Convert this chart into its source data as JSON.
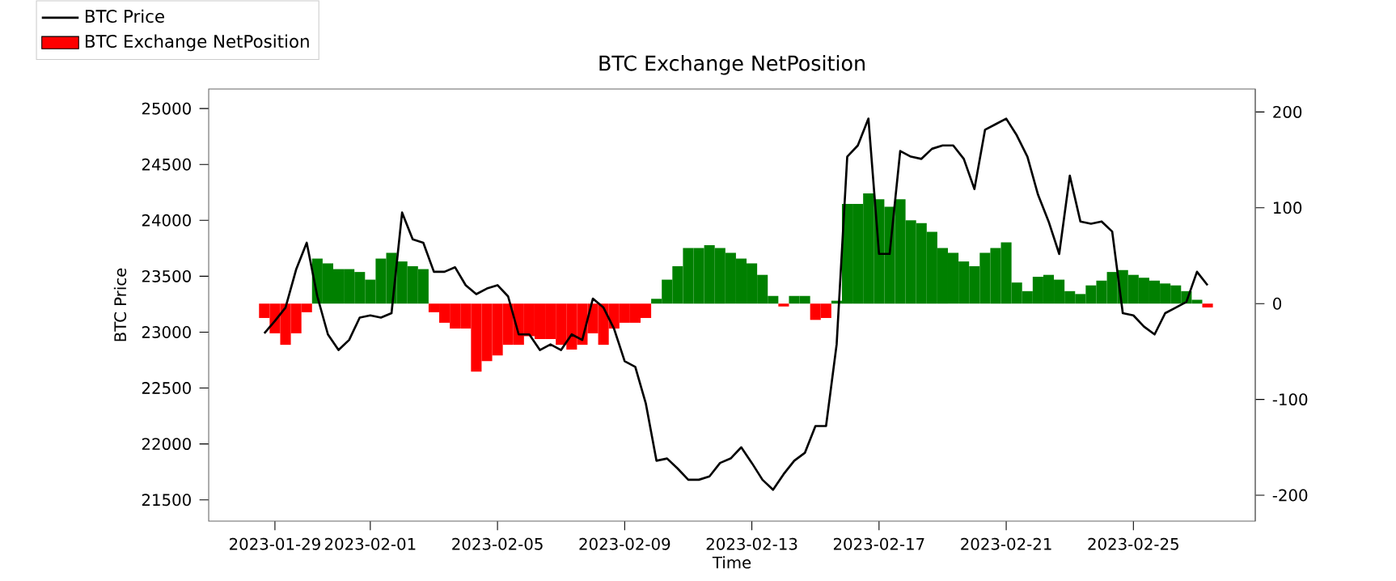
{
  "chart_data": {
    "type": "line",
    "title": "BTC Exchange NetPosition",
    "xlabel": "Time",
    "ylabel": "BTC Price",
    "x": [
      "2023-01-28T16:00",
      "2023-01-29T00:00",
      "2023-01-29T08:00",
      "2023-01-29T16:00",
      "2023-01-30T00:00",
      "2023-01-30T08:00",
      "2023-01-30T16:00",
      "2023-01-31T00:00",
      "2023-01-31T08:00",
      "2023-01-31T16:00",
      "2023-02-01T00:00",
      "2023-02-01T08:00",
      "2023-02-01T16:00",
      "2023-02-02T00:00",
      "2023-02-02T08:00",
      "2023-02-02T16:00",
      "2023-02-03T00:00",
      "2023-02-03T08:00",
      "2023-02-03T16:00",
      "2023-02-04T00:00",
      "2023-02-04T08:00",
      "2023-02-04T16:00",
      "2023-02-05T00:00",
      "2023-02-05T08:00",
      "2023-02-05T16:00",
      "2023-02-06T00:00",
      "2023-02-06T08:00",
      "2023-02-06T16:00",
      "2023-02-07T00:00",
      "2023-02-07T08:00",
      "2023-02-07T16:00",
      "2023-02-08T00:00",
      "2023-02-08T08:00",
      "2023-02-08T16:00",
      "2023-02-09T00:00",
      "2023-02-09T08:00",
      "2023-02-09T16:00",
      "2023-02-10T00:00",
      "2023-02-10T08:00",
      "2023-02-10T16:00",
      "2023-02-11T00:00",
      "2023-02-11T08:00",
      "2023-02-11T16:00",
      "2023-02-12T00:00",
      "2023-02-12T08:00",
      "2023-02-12T16:00",
      "2023-02-13T00:00",
      "2023-02-13T08:00",
      "2023-02-13T16:00",
      "2023-02-14T00:00",
      "2023-02-14T08:00",
      "2023-02-14T16:00",
      "2023-02-15T00:00",
      "2023-02-15T08:00",
      "2023-02-15T16:00",
      "2023-02-16T00:00",
      "2023-02-16T08:00",
      "2023-02-16T16:00",
      "2023-02-17T00:00",
      "2023-02-17T08:00",
      "2023-02-17T16:00",
      "2023-02-18T00:00",
      "2023-02-18T08:00",
      "2023-02-18T16:00",
      "2023-02-19T00:00",
      "2023-02-19T08:00",
      "2023-02-19T16:00",
      "2023-02-20T00:00",
      "2023-02-20T08:00",
      "2023-02-20T16:00",
      "2023-02-21T00:00",
      "2023-02-21T08:00",
      "2023-02-21T16:00",
      "2023-02-22T00:00",
      "2023-02-22T08:00",
      "2023-02-22T16:00",
      "2023-02-23T00:00",
      "2023-02-23T08:00",
      "2023-02-23T16:00",
      "2023-02-24T00:00",
      "2023-02-24T08:00",
      "2023-02-24T16:00",
      "2023-02-25T00:00",
      "2023-02-25T08:00",
      "2023-02-25T16:00",
      "2023-02-26T00:00",
      "2023-02-26T08:00",
      "2023-02-26T16:00",
      "2023-02-27T00:00",
      "2023-02-27T08:00"
    ],
    "series": [
      {
        "name": "BTC Exchange NetPosition",
        "type": "bar",
        "axis": "y2",
        "color": "#ff0000",
        "values": [
          -15,
          -31,
          -43,
          -31,
          -9,
          47,
          42,
          36,
          36,
          33,
          25,
          47,
          53,
          44,
          39,
          36,
          -9,
          -20,
          -26,
          -26,
          -71,
          -60,
          -54,
          -43,
          -43,
          -34,
          -37,
          -37,
          -43,
          -48,
          -43,
          -31,
          -43,
          -26,
          -20,
          -20,
          -15,
          5,
          25,
          39,
          58,
          58,
          61,
          58,
          53,
          47,
          42,
          30,
          8,
          -3,
          8,
          8,
          -17,
          -15,
          3,
          104,
          104,
          115,
          109,
          101,
          109,
          87,
          84,
          75,
          58,
          53,
          44,
          39,
          53,
          58,
          64,
          22,
          13,
          28,
          30,
          25,
          13,
          10,
          19,
          24,
          33,
          35,
          30,
          27,
          24,
          21,
          19,
          13,
          4,
          -4
        ],
        "colors": [
          "#ff0000",
          "#ff0000",
          "#ff0000",
          "#ff0000",
          "#ff0000",
          "#008000",
          "#008000",
          "#008000",
          "#008000",
          "#008000",
          "#008000",
          "#008000",
          "#008000",
          "#008000",
          "#008000",
          "#008000",
          "#ff0000",
          "#ff0000",
          "#ff0000",
          "#ff0000",
          "#ff0000",
          "#ff0000",
          "#ff0000",
          "#ff0000",
          "#ff0000",
          "#ff0000",
          "#ff0000",
          "#ff0000",
          "#ff0000",
          "#ff0000",
          "#ff0000",
          "#ff0000",
          "#ff0000",
          "#ff0000",
          "#ff0000",
          "#ff0000",
          "#ff0000",
          "#008000",
          "#008000",
          "#008000",
          "#008000",
          "#008000",
          "#008000",
          "#008000",
          "#008000",
          "#008000",
          "#008000",
          "#008000",
          "#008000",
          "#ff0000",
          "#008000",
          "#008000",
          "#ff0000",
          "#ff0000",
          "#008000",
          "#008000",
          "#008000",
          "#008000",
          "#008000",
          "#008000",
          "#008000",
          "#008000",
          "#008000",
          "#008000",
          "#008000",
          "#008000",
          "#008000",
          "#008000",
          "#008000",
          "#008000",
          "#008000",
          "#008000",
          "#008000",
          "#008000",
          "#008000",
          "#008000",
          "#008000",
          "#008000",
          "#008000",
          "#008000",
          "#008000",
          "#008000",
          "#008000",
          "#008000",
          "#008000",
          "#008000",
          "#008000",
          "#008000",
          "#008000",
          "#ff0000"
        ]
      },
      {
        "name": "BTC Price",
        "color": "#000000",
        "values": [
          22990,
          23100,
          23220,
          23560,
          23800,
          23320,
          22980,
          22840,
          22930,
          23130,
          23150,
          23130,
          23170,
          24070,
          23830,
          23800,
          23540,
          23540,
          23580,
          23420,
          23340,
          23390,
          23420,
          23320,
          22980,
          22980,
          22840,
          22890,
          22840,
          22980,
          22930,
          23300,
          23220,
          23030,
          22740,
          22690,
          22360,
          21850,
          21870,
          21780,
          21680,
          21680,
          21710,
          21830,
          21870,
          21970,
          21830,
          21680,
          21590,
          21730,
          21850,
          21920,
          22160,
          22160,
          22890,
          24570,
          24670,
          24910,
          23700,
          23700,
          24620,
          24570,
          24550,
          24640,
          24670,
          24670,
          24550,
          24280,
          24810,
          24860,
          24910,
          24760,
          24570,
          24230,
          23990,
          23700,
          24400,
          23990,
          23970,
          23990,
          23900,
          23170,
          23150,
          23050,
          22980,
          23170,
          23220,
          23270,
          23540,
          23420
        ]
      }
    ],
    "xlim": [
      "2023-01-26T22:00",
      "2023-02-28T20:00"
    ],
    "xticks": [
      "2023-01-29",
      "2023-02-01",
      "2023-02-05",
      "2023-02-09",
      "2023-02-13",
      "2023-02-17",
      "2023-02-21",
      "2023-02-25"
    ],
    "ylim": [
      21310,
      25175
    ],
    "yticks": [
      21500,
      22000,
      22500,
      23000,
      23500,
      24000,
      24500,
      25000
    ],
    "y2lim": [
      -227,
      224
    ],
    "y2ticks": [
      -200,
      -100,
      0,
      100,
      200
    ],
    "legend": "top left"
  }
}
